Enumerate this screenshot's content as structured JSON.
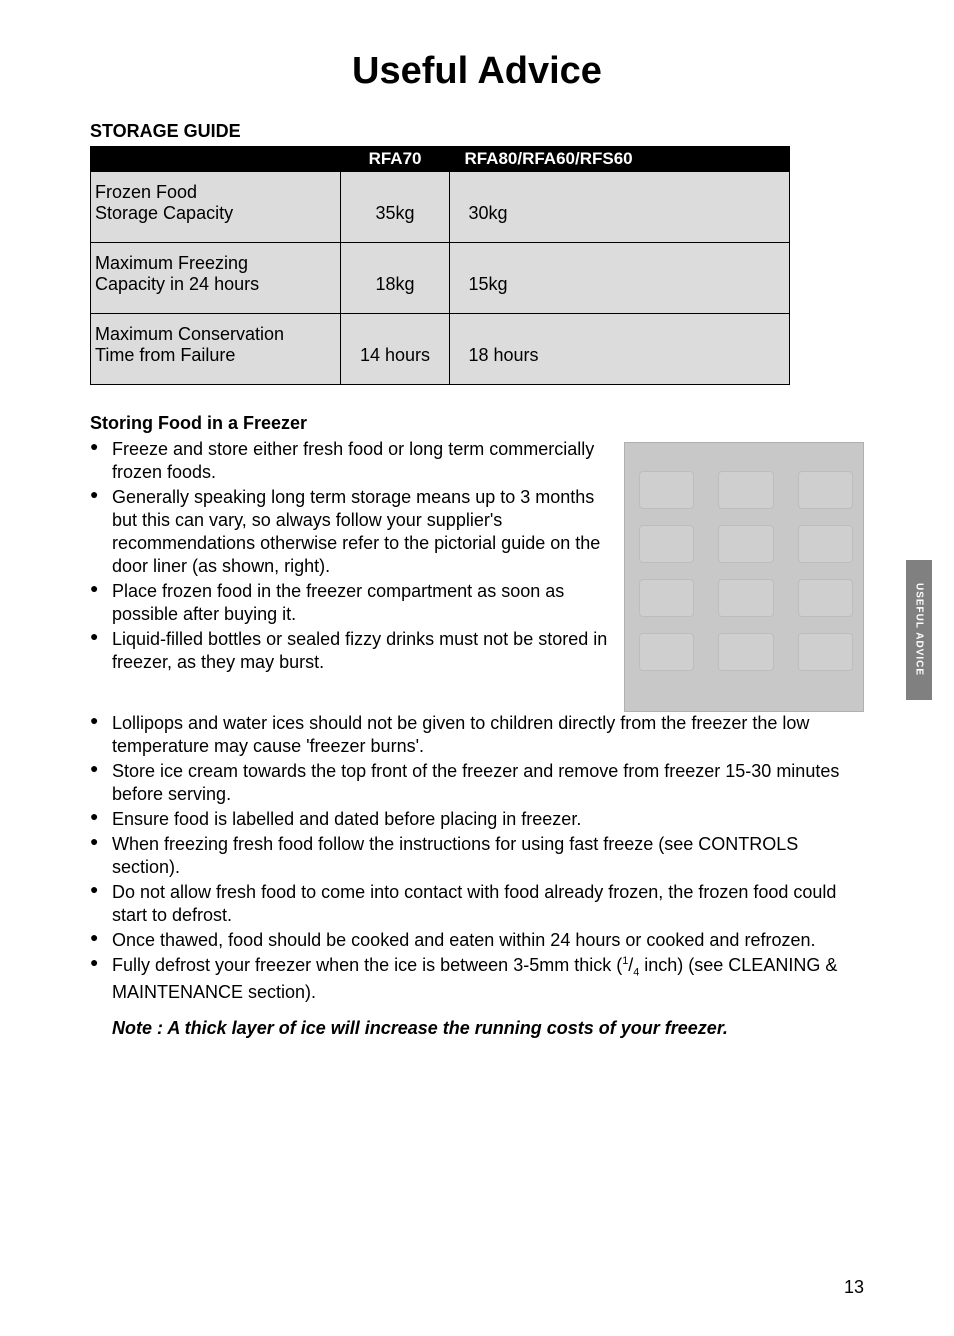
{
  "page": {
    "title": "Useful Advice",
    "number": "13",
    "side_tab": "USEFUL  ADVICE"
  },
  "storage_guide": {
    "heading": "STORAGE GUIDE",
    "columns": [
      "",
      "RFA70",
      "RFA80/RFA60/RFS60"
    ],
    "rows": [
      {
        "label_l1": "Frozen Food",
        "label_l2": "Storage Capacity",
        "c2": "35kg",
        "c3": "30kg"
      },
      {
        "label_l1": "Maximum Freezing",
        "label_l2": "Capacity in 24 hours",
        "c2": "18kg",
        "c3": "15kg"
      },
      {
        "label_l1": "Maximum Conservation",
        "label_l2": "Time from Failure",
        "c2": "14 hours",
        "c3": "18 hours"
      }
    ]
  },
  "storing": {
    "heading": "Storing Food in a Freezer",
    "bullets_top": [
      "Freeze and store either fresh food or long term commercially frozen foods.",
      "Generally speaking long term storage means up to 3 months but this can vary, so always follow your supplier's recommendations otherwise refer to the pictorial guide on the door liner (as shown, right).",
      "Place frozen food in the freezer compartment as soon as possible after buying it.",
      "Liquid-filled bottles or sealed fizzy drinks must not be stored in freezer, as they may burst."
    ],
    "bullets_bottom": [
      "Lollipops and water ices should not be given to children directly from the freezer the low temperature may cause 'freezer burns'.",
      "Store ice cream towards the top front of the freezer and remove from freezer 15-30 minutes before serving.",
      "Ensure food is labelled and dated before placing in freezer.",
      "When freezing fresh food follow the instructions for using fast freeze (see CONTROLS section).",
      "Do not allow fresh food to come into contact with food already frozen, the frozen food could start to defrost.",
      "Once thawed, food should be cooked and eaten within 24 hours or cooked and refrozen."
    ],
    "bullet_last_prefix": "Fully defrost your freezer when the ice is between 3-5mm thick (",
    "bullet_last_frac_num": "1",
    "bullet_last_frac_den": "4",
    "bullet_last_suffix": " inch) (see CLEANING & MAINTENANCE section).",
    "note": "Note : A thick layer of ice will increase the running costs of your freezer."
  },
  "colors": {
    "table_header_bg": "#000000",
    "table_header_fg": "#ffffff",
    "table_cell_bg": "#dcdcdc",
    "sidetab_bg": "#808080",
    "door_bg": "#c8c8c8"
  }
}
